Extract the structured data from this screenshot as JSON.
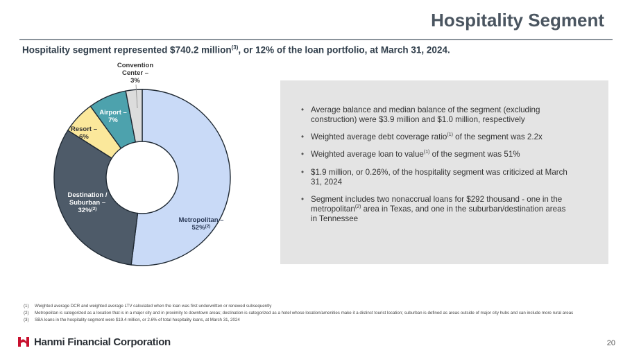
{
  "header": {
    "title": "Hospitality Segment",
    "subtitle_pre": "Hospitality segment represented $740.2 million",
    "subtitle_sup": "(3)",
    "subtitle_post": ", or 12% of the loan portfolio, at March 31, 2024."
  },
  "chart_data": {
    "type": "pie",
    "donut": true,
    "title": "",
    "slices": [
      {
        "name": "Metropolitan",
        "value": 52,
        "label_lines": [
          "Metropolitan –",
          "52%"
        ],
        "label_sup": "(2)",
        "color": "#c9daf7",
        "label_color": "#2b3a57"
      },
      {
        "name": "Destination / Suburban",
        "value": 32,
        "label_lines": [
          "Destination /",
          "Suburban –",
          "32%"
        ],
        "label_sup": "(2)",
        "color": "#4e5b69",
        "label_color": "#ffffff"
      },
      {
        "name": "Resort",
        "value": 6,
        "label_lines": [
          "Resort –",
          "6%"
        ],
        "label_sup": "",
        "color": "#fbe89b",
        "label_color": "#333333"
      },
      {
        "name": "Airport",
        "value": 7,
        "label_lines": [
          "Airport –",
          "7%"
        ],
        "label_sup": "",
        "color": "#4da2ad",
        "label_color": "#ffffff"
      },
      {
        "name": "Convention Center",
        "value": 3,
        "label_lines": [
          "Convention",
          "Center –",
          "3%"
        ],
        "label_sup": "",
        "color": "#dcdcdc",
        "label_color": "#333333"
      }
    ]
  },
  "bullets": [
    {
      "pre": "Average balance and median balance of the segment (excluding construction) were $3.9 million and $1.0 million, respectively"
    },
    {
      "pre": "Weighted average debt coverage ratio",
      "sup": "(1)",
      "post": " of the segment was 2.2x"
    },
    {
      "pre": "Weighted average loan to value",
      "sup": "(1)",
      "post": " of the segment was 51%"
    },
    {
      "pre": "$1.9 million, or 0.26%, of the hospitality segment was criticized at March 31, 2024"
    },
    {
      "pre": "Segment includes two nonaccrual loans for $292 thousand - one in the metropolitan",
      "sup": "(2)",
      "post": " area in Texas, and one in the suburban/destination areas in Tennessee"
    }
  ],
  "footnotes": [
    {
      "num": "(1)",
      "text": "Weighted average DCR and weighted average LTV calculated when the loan was first underwritten or renewed subsequently"
    },
    {
      "num": "(2)",
      "text": "Metropolitan is categorized as a location that is in a major city and in proximity to downtown areas; destination is categorized as a hotel whose location/amenities make it a distinct tourist location; suburban is defined as areas outside of major city hubs and can include more rural areas"
    },
    {
      "num": "(3)",
      "text": "SBA loans in the hospitality segment were $19.4 million, or 2.6% of total hospitality loans, at March 31, 2024"
    }
  ],
  "footer": {
    "company": "Hanmi Financial Corporation",
    "page": "20",
    "brand_color": "#c8102e"
  }
}
